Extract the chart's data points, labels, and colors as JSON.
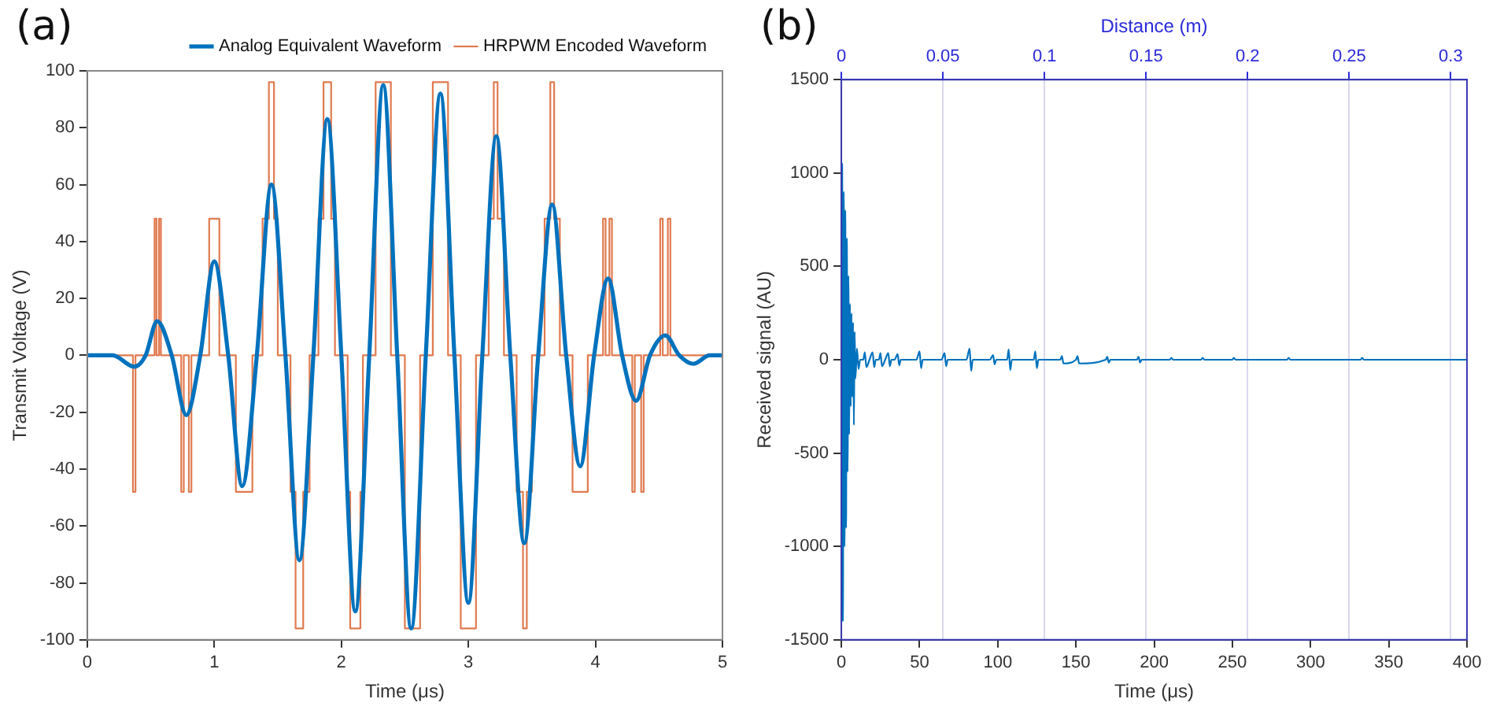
{
  "chart_data": [
    {
      "type": "line",
      "title": "(a)",
      "xlabel": "Time (μs)",
      "ylabel": "Transmit Voltage (V)",
      "xlim": [
        0,
        5
      ],
      "xticks": [
        0,
        1,
        2,
        3,
        4,
        5
      ],
      "ylim": [
        -100,
        100
      ],
      "yticks": [
        -100,
        -80,
        -60,
        -40,
        -20,
        0,
        20,
        40,
        60,
        80,
        100
      ],
      "grid": false,
      "legend": "top right",
      "series": [
        {
          "name": "Analog Equivalent Waveform",
          "color": "#0072bd",
          "x": [
            0,
            0.2,
            0.37,
            0.46,
            0.55,
            0.665,
            0.78,
            0.89,
            1.0,
            1.11,
            1.22,
            1.335,
            1.45,
            1.56,
            1.67,
            1.78,
            1.89,
            2.0,
            2.11,
            2.22,
            2.33,
            2.44,
            2.55,
            2.665,
            2.78,
            2.89,
            3.0,
            3.11,
            3.22,
            3.33,
            3.44,
            3.55,
            3.66,
            3.77,
            3.88,
            3.99,
            4.1,
            4.21,
            4.32,
            4.43,
            4.55,
            4.66,
            4.77,
            4.9,
            5
          ],
          "values": [
            0,
            0,
            -4,
            0,
            12,
            0,
            -21,
            0,
            33,
            0,
            -46,
            0,
            60,
            0,
            -72,
            0,
            83,
            0,
            -90,
            0,
            95,
            0,
            -96,
            0,
            92,
            0,
            -87,
            0,
            77,
            0,
            -66,
            0,
            53,
            0,
            -39,
            0,
            27,
            0,
            -16,
            0,
            7,
            0,
            -3,
            0,
            0
          ]
        },
        {
          "name": "HRPWM Encoded Waveform",
          "type": "step",
          "color": "#e07a4f",
          "x": [
            0,
            0.36,
            0.38,
            0.53,
            0.545,
            0.565,
            0.58,
            0.74,
            0.76,
            0.8,
            0.82,
            0.96,
            1.04,
            1.17,
            1.3,
            1.38,
            1.43,
            1.47,
            1.5,
            1.6,
            1.64,
            1.7,
            1.75,
            1.82,
            1.86,
            1.92,
            1.95,
            2.05,
            2.07,
            2.15,
            2.17,
            2.27,
            2.39,
            2.5,
            2.62,
            2.72,
            2.84,
            2.94,
            3.06,
            3.16,
            3.2,
            3.23,
            3.28,
            3.38,
            3.43,
            3.46,
            3.5,
            3.6,
            3.645,
            3.675,
            3.72,
            3.82,
            3.94,
            4.06,
            4.08,
            4.11,
            4.13,
            4.29,
            4.31,
            4.36,
            4.38,
            4.51,
            4.53,
            4.57,
            4.59,
            5
          ],
          "values": [
            0,
            -48,
            0,
            48,
            0,
            48,
            0,
            -48,
            0,
            -48,
            0,
            48,
            0,
            -48,
            0,
            48,
            96,
            48,
            0,
            -48,
            -96,
            -48,
            0,
            48,
            96,
            48,
            0,
            -48,
            -96,
            -48,
            0,
            96,
            0,
            -96,
            0,
            96,
            0,
            -96,
            0,
            48,
            96,
            48,
            0,
            -48,
            -96,
            -48,
            0,
            48,
            96,
            48,
            0,
            -48,
            0,
            48,
            0,
            48,
            0,
            -48,
            0,
            -48,
            0,
            48,
            0,
            48,
            0,
            0
          ]
        }
      ]
    },
    {
      "type": "line",
      "title": "(b)",
      "xlabel": "Time (μs)",
      "ylabel": "Received signal (AU)",
      "x2label": "Distance (m)",
      "xlim": [
        0,
        400
      ],
      "xticks": [
        0,
        50,
        100,
        150,
        200,
        250,
        300,
        350,
        400
      ],
      "x2lim": [
        0,
        0.308
      ],
      "x2ticks": [
        0,
        0.05,
        0.1,
        0.15,
        0.2,
        0.25,
        0.3
      ],
      "ylim": [
        -1500,
        1500
      ],
      "yticks": [
        -1500,
        -1000,
        -500,
        0,
        500,
        1000,
        1500
      ],
      "grid": "x2",
      "series": [
        {
          "color": "#0072bd",
          "x": [
            0,
            0.5,
            1,
            1.5,
            2,
            2.5,
            3,
            3.5,
            4,
            4.5,
            5,
            5.5,
            6,
            6.5,
            7,
            7.5,
            8,
            8.5,
            9,
            10,
            11,
            12,
            14,
            15,
            16,
            18,
            20,
            21,
            22,
            24,
            25,
            26,
            28,
            30,
            31,
            32,
            34,
            36,
            37,
            38,
            48,
            50,
            51,
            52,
            64,
            66,
            67,
            68,
            80,
            82,
            83,
            84,
            95,
            97,
            98,
            99,
            106,
            107,
            108,
            109,
            123,
            124,
            125,
            126,
            140,
            141,
            142,
            150,
            151,
            152,
            169,
            170,
            171,
            172,
            189,
            190,
            191,
            192,
            210,
            211,
            212,
            230,
            231,
            232,
            250,
            251,
            252,
            285,
            286,
            287,
            332,
            333,
            334,
            400
          ],
          "values": [
            0,
            1050,
            -1400,
            900,
            -1000,
            800,
            -900,
            650,
            -600,
            450,
            -400,
            300,
            -250,
            250,
            -200,
            200,
            -350,
            150,
            -100,
            60,
            -50,
            0,
            0,
            40,
            -40,
            0,
            40,
            -40,
            0,
            0,
            35,
            -35,
            0,
            35,
            -35,
            0,
            0,
            30,
            -30,
            0,
            0,
            45,
            -45,
            0,
            0,
            35,
            -35,
            0,
            0,
            60,
            -60,
            0,
            0,
            25,
            -25,
            0,
            0,
            55,
            -55,
            0,
            0,
            45,
            -45,
            0,
            0,
            20,
            -20,
            0,
            20,
            -20,
            0,
            15,
            -15,
            0,
            0,
            15,
            -15,
            0,
            0,
            10,
            0,
            0,
            10,
            0,
            0,
            10,
            0,
            0,
            10,
            0,
            0,
            10,
            0,
            0
          ]
        }
      ]
    }
  ]
}
